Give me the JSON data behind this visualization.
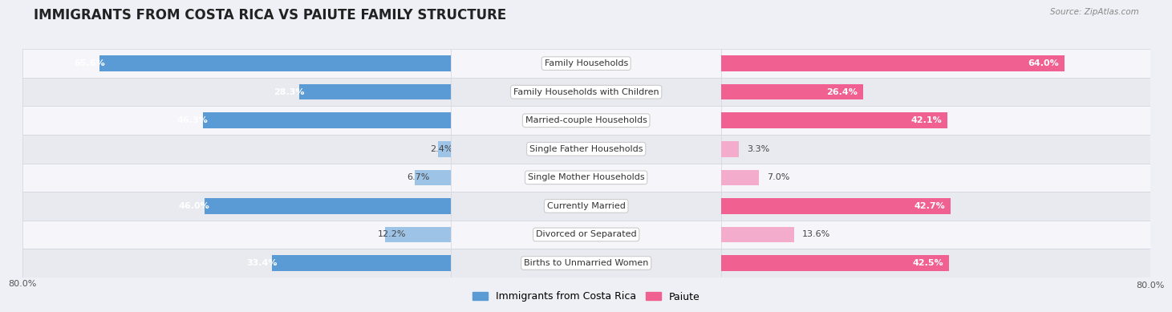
{
  "title": "IMMIGRANTS FROM COSTA RICA VS PAIUTE FAMILY STRUCTURE",
  "source": "Source: ZipAtlas.com",
  "categories": [
    "Family Households",
    "Family Households with Children",
    "Married-couple Households",
    "Single Father Households",
    "Single Mother Households",
    "Currently Married",
    "Divorced or Separated",
    "Births to Unmarried Women"
  ],
  "left_values": [
    65.6,
    28.3,
    46.3,
    2.4,
    6.7,
    46.0,
    12.2,
    33.4
  ],
  "right_values": [
    64.0,
    26.4,
    42.1,
    3.3,
    7.0,
    42.7,
    13.6,
    42.5
  ],
  "left_color": "#5b9bd5",
  "left_color_light": "#9dc3e6",
  "right_color": "#f06090",
  "right_color_light": "#f4accc",
  "left_label": "Immigrants from Costa Rica",
  "right_label": "Paiute",
  "axis_max": 80.0,
  "axis_label_left": "80.0%",
  "axis_label_right": "80.0%",
  "bg_color": "#eef0f5",
  "row_bg_even": "#f5f5fa",
  "row_bg_odd": "#e8eaf0",
  "title_fontsize": 12,
  "label_fontsize": 8,
  "value_fontsize": 8,
  "legend_fontsize": 9,
  "threshold_inside": 15
}
